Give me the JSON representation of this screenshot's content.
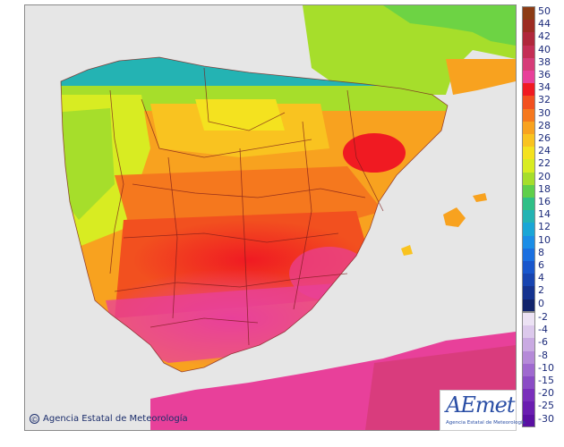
{
  "credit": {
    "symbol": "©",
    "text": "Agencia Estatal de Meteorología"
  },
  "logo": {
    "word": "AEmet",
    "sub": "Agencia Estatal de Meteorología"
  },
  "legend": {
    "items": [
      {
        "label": "50",
        "color": "#8c3b14"
      },
      {
        "label": "44",
        "color": "#9c2b22"
      },
      {
        "label": "42",
        "color": "#b0273b"
      },
      {
        "label": "40",
        "color": "#c42e55"
      },
      {
        "label": "38",
        "color": "#d63c78"
      },
      {
        "label": "36",
        "color": "#e8409a"
      },
      {
        "label": "34",
        "color": "#f01a22"
      },
      {
        "label": "32",
        "color": "#f2501f"
      },
      {
        "label": "30",
        "color": "#f5781e"
      },
      {
        "label": "28",
        "color": "#f8a21f"
      },
      {
        "label": "26",
        "color": "#f9c320"
      },
      {
        "label": "24",
        "color": "#f4e21f"
      },
      {
        "label": "22",
        "color": "#d8ec22"
      },
      {
        "label": "20",
        "color": "#a6de2b"
      },
      {
        "label": "18",
        "color": "#5fcf4b"
      },
      {
        "label": "16",
        "color": "#2fbf86"
      },
      {
        "label": "14",
        "color": "#24b3b3"
      },
      {
        "label": "12",
        "color": "#1aa6d6"
      },
      {
        "label": "10",
        "color": "#1b8de6"
      },
      {
        "label": "8",
        "color": "#1a6fe0"
      },
      {
        "label": "6",
        "color": "#1856cc"
      },
      {
        "label": "4",
        "color": "#1744b0"
      },
      {
        "label": "2",
        "color": "#15338f"
      },
      {
        "label": "0",
        "color": "#12246c"
      },
      {
        "label": "-2",
        "color": "#ece2f4"
      },
      {
        "label": "-4",
        "color": "#dcc9ec"
      },
      {
        "label": "-6",
        "color": "#c9aae2"
      },
      {
        "label": "-8",
        "color": "#b58ad8"
      },
      {
        "label": "-10",
        "color": "#9f69cf"
      },
      {
        "label": "-15",
        "color": "#8a4cc5"
      },
      {
        "label": "-20",
        "color": "#7a2fbb"
      },
      {
        "label": "-25",
        "color": "#6a1db0"
      },
      {
        "label": "-30",
        "color": "#5a10a2"
      }
    ]
  }
}
